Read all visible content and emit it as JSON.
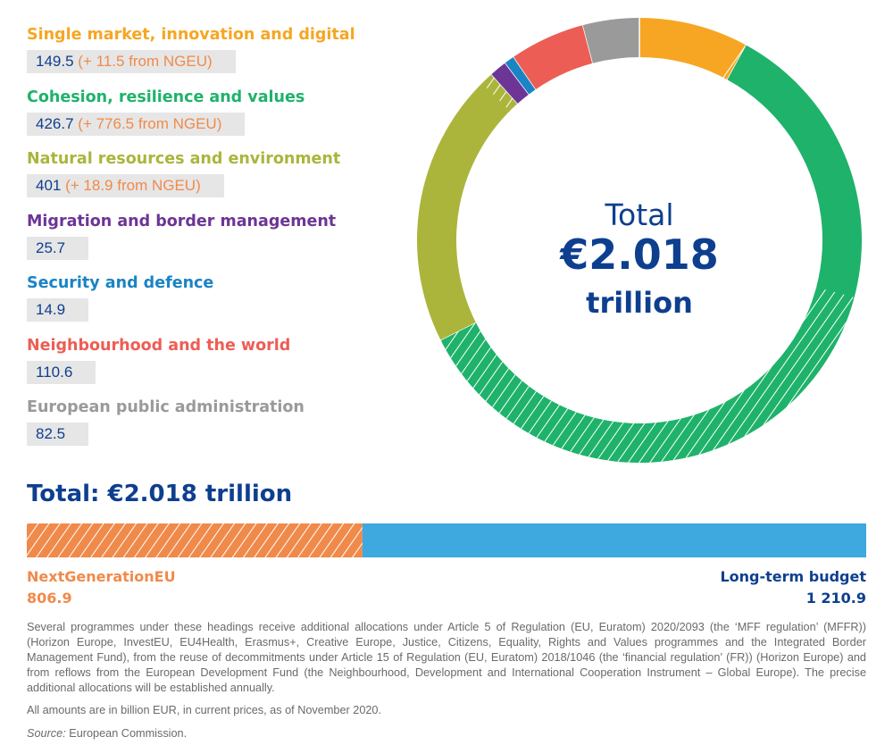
{
  "chart_data": {
    "type": "pie",
    "center_text": {
      "line1": "Total",
      "line2": "€2.018",
      "line3": "trillion"
    },
    "categories": [
      {
        "name": "Single market, innovation and digital",
        "value": 149.5,
        "ngeu": 11.5,
        "value_text": "149.5",
        "extra_text": "(+ 11.5 from NGEU)",
        "color": "#f6a623"
      },
      {
        "name": "Cohesion,  resilience and values",
        "value": 426.7,
        "ngeu": 776.5,
        "value_text": "426.7",
        "extra_text": "(+ 776.5 from NGEU)",
        "color": "#1fb26b"
      },
      {
        "name": "Natural  resources and environment",
        "value": 401,
        "ngeu": 18.9,
        "value_text": "401",
        "extra_text": "(+ 18.9 from NGEU)",
        "color": "#abb53c"
      },
      {
        "name": "Migration and border management",
        "value": 25.7,
        "ngeu": 0,
        "value_text": "25.7",
        "extra_text": "",
        "color": "#6c3596"
      },
      {
        "name": "Security and  defence",
        "value": 14.9,
        "ngeu": 0,
        "value_text": "14.9",
        "extra_text": "",
        "color": "#1a84c4"
      },
      {
        "name": "Neighbourhood and the world",
        "value": 110.6,
        "ngeu": 0,
        "value_text": "110.6",
        "extra_text": "",
        "color": "#ec5e55"
      },
      {
        "name": "European  public administration",
        "value": 82.5,
        "ngeu": 0,
        "value_text": "82.5",
        "extra_text": "",
        "color": "#9a9a9a"
      }
    ],
    "total_label": "Total: €2.018 trillion",
    "bar": {
      "ngeu": {
        "label": "NextGenerationEU",
        "value": 806.9,
        "value_text": "806.9",
        "color": "#f08a4b"
      },
      "long_term": {
        "label": "Long-term budget",
        "value": 1210.9,
        "value_text": "1 210.9",
        "color": "#3da9df"
      }
    }
  },
  "notes": {
    "paragraph": "Several programmes under these headings receive additional allocations under Article 5 of Regulation (EU, Euratom) 2020/2093 (the ‘MFF regulation’ (MFFR)) (Horizon Europe, InvestEU, EU4Health, Erasmus+, Creative Europe, Justice, Citizens, Equality, Rights and Values programmes and the Integrated Border Management Fund), from the reuse of decommitments under Article 15 of Regulation (EU, Euratom) 2018/1046 (the ‘financial regulation’ (FR)) (Horizon Europe) and from reflows from the European Development Fund (the Neighbourhood, Development and International Cooperation Instrument – Global Europe). The precise additional allocations will be established annually.",
    "amounts": "All amounts are in billion EUR, in current prices, as of November 2020.",
    "source_label": "Source:",
    "source_value": " European Commission."
  }
}
